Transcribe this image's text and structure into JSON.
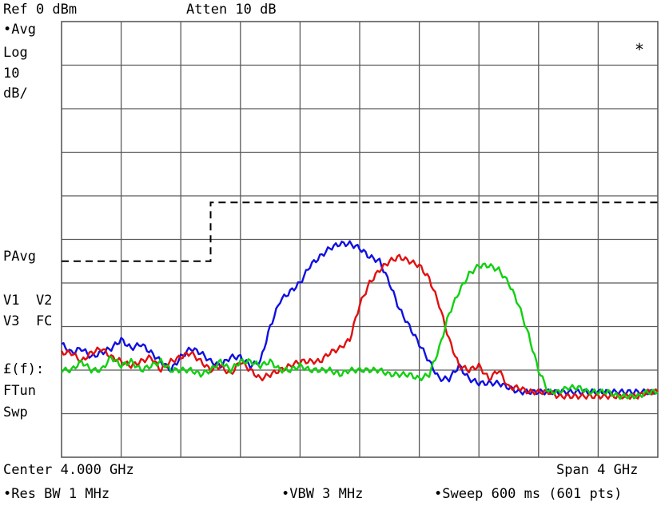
{
  "header": {
    "ref_level": "Ref 0 dBm",
    "attenuation": "Atten 10 dB"
  },
  "left_panel": {
    "detector": "•Avg",
    "scale_type": "Log",
    "scale_value": "10",
    "scale_unit": "dB/",
    "power_avg": "PAvg",
    "v_line1": "V1  V2",
    "v_line2": "V3  FC",
    "func": "£(f):",
    "ftun": "FTun",
    "swp": "Swp"
  },
  "marker_symbol": "*",
  "footer": {
    "center": "Center 4.000 GHz",
    "span": "Span 4 GHz",
    "res_bw": "•Res BW 1 MHz",
    "vbw": "•VBW 3 MHz",
    "sweep": "•Sweep 600 ms (601 pts)"
  },
  "colors": {
    "grid": "#5a5a5a",
    "trace1": "#1010e0",
    "trace2": "#e01010",
    "trace3": "#10d010",
    "limit_line": "#000000"
  },
  "traces": [
    {
      "color_key": "trace1",
      "y_db": [
        -74,
        -76,
        -75,
        -77,
        -76,
        -75,
        -73,
        -75,
        -74,
        -76,
        -78,
        -80,
        -77,
        -75,
        -76,
        -78,
        -79,
        -77,
        -77,
        -79,
        -78,
        -70,
        -64,
        -62,
        -60,
        -56,
        -54,
        -52,
        -51,
        -51,
        -52,
        -54,
        -55,
        -60,
        -66,
        -70,
        -74,
        -78,
        -82,
        -82,
        -79,
        -82,
        -83,
        -83,
        -83,
        -84,
        -85,
        -85,
        -85,
        -85,
        -85,
        -85,
        -85,
        -85,
        -85,
        -85,
        -85,
        -85,
        -85,
        -85,
        -85
      ]
    },
    {
      "color_key": "trace2",
      "y_db": [
        -76,
        -76,
        -78,
        -76,
        -75,
        -77,
        -78,
        -79,
        -78,
        -77,
        -80,
        -78,
        -77,
        -76,
        -78,
        -80,
        -79,
        -81,
        -78,
        -80,
        -82,
        -81,
        -80,
        -79,
        -78,
        -78,
        -78,
        -76,
        -75,
        -73,
        -65,
        -60,
        -57,
        -55,
        -54,
        -55,
        -56,
        -59,
        -65,
        -73,
        -79,
        -80,
        -79,
        -82,
        -80,
        -84,
        -84,
        -85,
        -85,
        -85,
        -86,
        -86,
        -86,
        -86,
        -86,
        -86,
        -86,
        -86,
        -86,
        -85,
        -85
      ]
    },
    {
      "color_key": "trace3",
      "y_db": [
        -80,
        -80,
        -78,
        -80,
        -80,
        -77,
        -79,
        -78,
        -80,
        -79,
        -78,
        -80,
        -80,
        -80,
        -81,
        -80,
        -78,
        -80,
        -78,
        -78,
        -79,
        -78,
        -80,
        -80,
        -79,
        -80,
        -80,
        -80,
        -81,
        -80,
        -80,
        -80,
        -80,
        -81,
        -81,
        -81,
        -82,
        -81,
        -75,
        -67,
        -62,
        -58,
        -56,
        -56,
        -57,
        -60,
        -65,
        -72,
        -80,
        -85,
        -85,
        -84,
        -84,
        -85,
        -85,
        -85,
        -86,
        -86,
        -86,
        -85,
        -85
      ]
    }
  ],
  "limit_line_db": [
    {
      "x": 0,
      "y": -55
    },
    {
      "x": 2.5,
      "y": -55
    },
    {
      "x": 2.5,
      "y": -41.5
    },
    {
      "x": 10,
      "y": -41.5
    }
  ],
  "scale": {
    "ref_db": 0,
    "db_per_div": 10,
    "v_divs": 10,
    "h_divs": 10
  }
}
